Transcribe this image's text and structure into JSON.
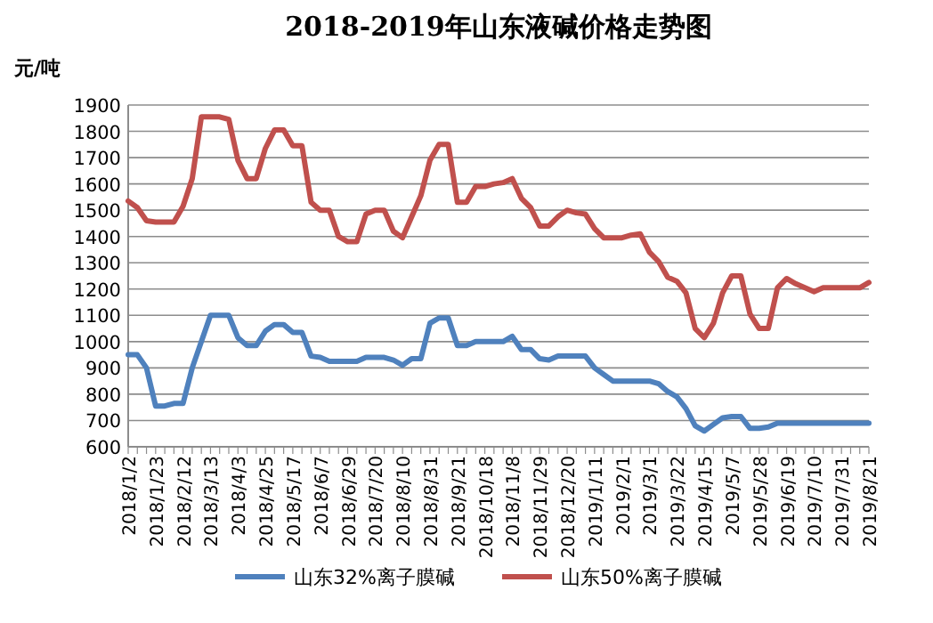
{
  "chart_data": {
    "type": "line",
    "title": "2018-2019年山东液碱价格走势图",
    "ylabel": "元/吨",
    "categories": [
      "2018/1/2",
      null,
      null,
      "2018/1/23",
      null,
      null,
      "2018/2/12",
      null,
      null,
      "2018/3/13",
      null,
      null,
      "2018/4/3",
      null,
      null,
      "2018/4/25",
      null,
      null,
      "2018/5/17",
      null,
      null,
      "2018/6/7",
      null,
      null,
      "2018/6/29",
      null,
      null,
      "2018/7/20",
      null,
      null,
      "2018/8/10",
      null,
      null,
      "2018/8/31",
      null,
      null,
      "2018/9/21",
      null,
      null,
      "2018/10/18",
      null,
      null,
      "2018/11/8",
      null,
      null,
      "2018/11/29",
      null,
      null,
      "2018/12/20",
      null,
      null,
      "2019/1/11",
      null,
      null,
      "2019/2/1",
      null,
      null,
      "2019/3/1",
      null,
      null,
      "2019/3/22",
      null,
      null,
      "2019/4/15",
      null,
      null,
      "2019/5/7",
      null,
      null,
      "2019/5/28",
      null,
      null,
      "2019/6/19",
      null,
      null,
      "2019/7/10",
      null,
      null,
      "2019/7/31",
      null,
      null,
      "2019/8/21"
    ],
    "series": [
      {
        "name": "山东32%离子膜碱",
        "color": "#4f81bd",
        "values": [
          950,
          950,
          900,
          755,
          755,
          765,
          765,
          900,
          1000,
          1100,
          1100,
          1100,
          1015,
          985,
          985,
          1040,
          1065,
          1065,
          1035,
          1035,
          945,
          940,
          925,
          925,
          925,
          925,
          940,
          940,
          940,
          930,
          910,
          935,
          935,
          1070,
          1090,
          1090,
          985,
          985,
          1000,
          1000,
          1000,
          1000,
          1020,
          970,
          970,
          935,
          930,
          945,
          945,
          945,
          945,
          900,
          875,
          850,
          850,
          850,
          850,
          850,
          840,
          810,
          790,
          745,
          680,
          660,
          685,
          710,
          715,
          715,
          670,
          670,
          675,
          690,
          690,
          690,
          690,
          690,
          690,
          690,
          690,
          690,
          690,
          690
        ]
      },
      {
        "name": "山东50%离子膜碱",
        "color": "#c0504d",
        "values": [
          1535,
          1510,
          1460,
          1455,
          1455,
          1455,
          1515,
          1620,
          1855,
          1855,
          1855,
          1845,
          1690,
          1620,
          1620,
          1735,
          1805,
          1805,
          1745,
          1745,
          1530,
          1500,
          1500,
          1400,
          1380,
          1380,
          1485,
          1500,
          1500,
          1420,
          1395,
          1475,
          1555,
          1690,
          1750,
          1750,
          1530,
          1530,
          1590,
          1590,
          1600,
          1605,
          1620,
          1545,
          1510,
          1440,
          1440,
          1475,
          1500,
          1490,
          1485,
          1430,
          1395,
          1395,
          1395,
          1405,
          1410,
          1340,
          1305,
          1245,
          1230,
          1185,
          1050,
          1015,
          1070,
          1185,
          1250,
          1250,
          1105,
          1050,
          1050,
          1205,
          1240,
          1220,
          1205,
          1190,
          1205,
          1205,
          1205,
          1205,
          1205,
          1225
        ]
      }
    ],
    "ylim": [
      600,
      1900
    ],
    "yticks": [
      600,
      700,
      800,
      900,
      1000,
      1100,
      1200,
      1300,
      1400,
      1500,
      1600,
      1700,
      1800,
      1900
    ],
    "grid": "y",
    "legend": "bottom",
    "line_style": "solid",
    "marker": "none"
  }
}
